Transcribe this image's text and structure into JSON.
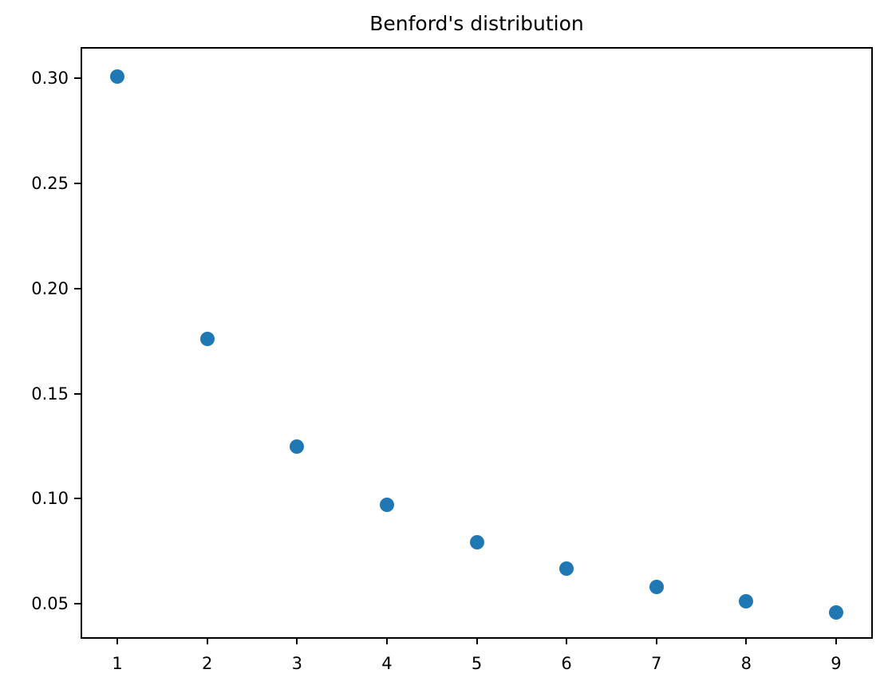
{
  "chart_data": {
    "type": "scatter",
    "title": "Benford's distribution",
    "xlabel": "",
    "ylabel": "",
    "x": [
      1,
      2,
      3,
      4,
      5,
      6,
      7,
      8,
      9
    ],
    "y": [
      0.301,
      0.1761,
      0.1249,
      0.0969,
      0.0792,
      0.0669,
      0.058,
      0.0512,
      0.0458
    ],
    "xlim": [
      0.6,
      9.4
    ],
    "ylim": [
      0.0337,
      0.3145
    ],
    "xticks": [
      1,
      2,
      3,
      4,
      5,
      6,
      7,
      8,
      9
    ],
    "xtick_labels": [
      "1",
      "2",
      "3",
      "4",
      "5",
      "6",
      "7",
      "8",
      "9"
    ],
    "yticks": [
      0.05,
      0.1,
      0.15,
      0.2,
      0.25,
      0.3
    ],
    "ytick_labels": [
      "0.05",
      "0.10",
      "0.15",
      "0.20",
      "0.25",
      "0.30"
    ],
    "marker_color": "#1f77b4",
    "grid": false,
    "legend_position": "none"
  }
}
